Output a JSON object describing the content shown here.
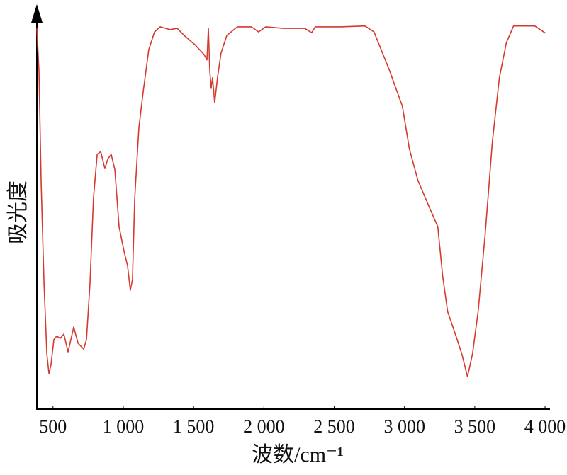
{
  "chart_data": {
    "type": "line",
    "x_label": "波数/cm⁻¹",
    "y_label": "吸光度",
    "xlim": [
      385,
      4030
    ],
    "ylim": [
      0,
      100
    ],
    "xticks": [
      500,
      {
        "value": 1000,
        "label": "1 000"
      },
      {
        "value": 1500,
        "label": "1 500"
      },
      {
        "value": 2000,
        "label": "2 000"
      },
      {
        "value": 2500,
        "label": "2 500"
      },
      {
        "value": 3000,
        "label": "3 000"
      },
      {
        "value": 3500,
        "label": "3 500"
      },
      {
        "value": 4000,
        "label": "4 000"
      }
    ],
    "x": [
      385,
      400,
      416,
      436,
      456,
      471,
      486,
      506,
      526,
      551,
      577,
      607,
      627,
      647,
      678,
      718,
      738,
      763,
      788,
      814,
      839,
      869,
      889,
      914,
      940,
      970,
      1005,
      1030,
      1050,
      1065,
      1081,
      1111,
      1141,
      1181,
      1222,
      1262,
      1332,
      1383,
      1433,
      1509,
      1574,
      1595,
      1605,
      1615,
      1625,
      1635,
      1650,
      1670,
      1695,
      1736,
      1811,
      1912,
      1962,
      2013,
      2138,
      2290,
      2340,
      2365,
      2541,
      2718,
      2783,
      2844,
      2894,
      2934,
      2985,
      3035,
      3096,
      3171,
      3237,
      3272,
      3307,
      3358,
      3408,
      3448,
      3484,
      3524,
      3574,
      3625,
      3675,
      3725,
      3776,
      3927,
      4003
    ],
    "series": [
      {
        "color": "#d43a2f",
        "values": [
          96.4,
          85.7,
          57.0,
          31.9,
          14.0,
          9.0,
          11.3,
          17.6,
          18.5,
          17.9,
          19.0,
          14.5,
          17.6,
          20.8,
          16.7,
          15.2,
          17.6,
          31.9,
          53.4,
          64.5,
          65.2,
          60.9,
          63.3,
          64.5,
          60.6,
          46.2,
          40.0,
          36.4,
          30.1,
          32.8,
          53.4,
          71.3,
          80.3,
          91.0,
          95.5,
          96.8,
          96.1,
          96.4,
          94.6,
          92.3,
          89.8,
          88.4,
          96.4,
          85.7,
          81.2,
          83.9,
          77.6,
          83.9,
          90.1,
          94.6,
          96.8,
          96.8,
          95.5,
          96.8,
          96.4,
          96.4,
          95.3,
          96.8,
          96.8,
          97.0,
          95.5,
          90.1,
          85.7,
          81.7,
          76.7,
          65.9,
          57.9,
          51.6,
          46.2,
          33.7,
          24.7,
          19.4,
          14.0,
          8.2,
          14.0,
          24.7,
          44.4,
          67.7,
          83.9,
          92.8,
          97.0,
          97.0,
          95.2
        ]
      }
    ]
  }
}
